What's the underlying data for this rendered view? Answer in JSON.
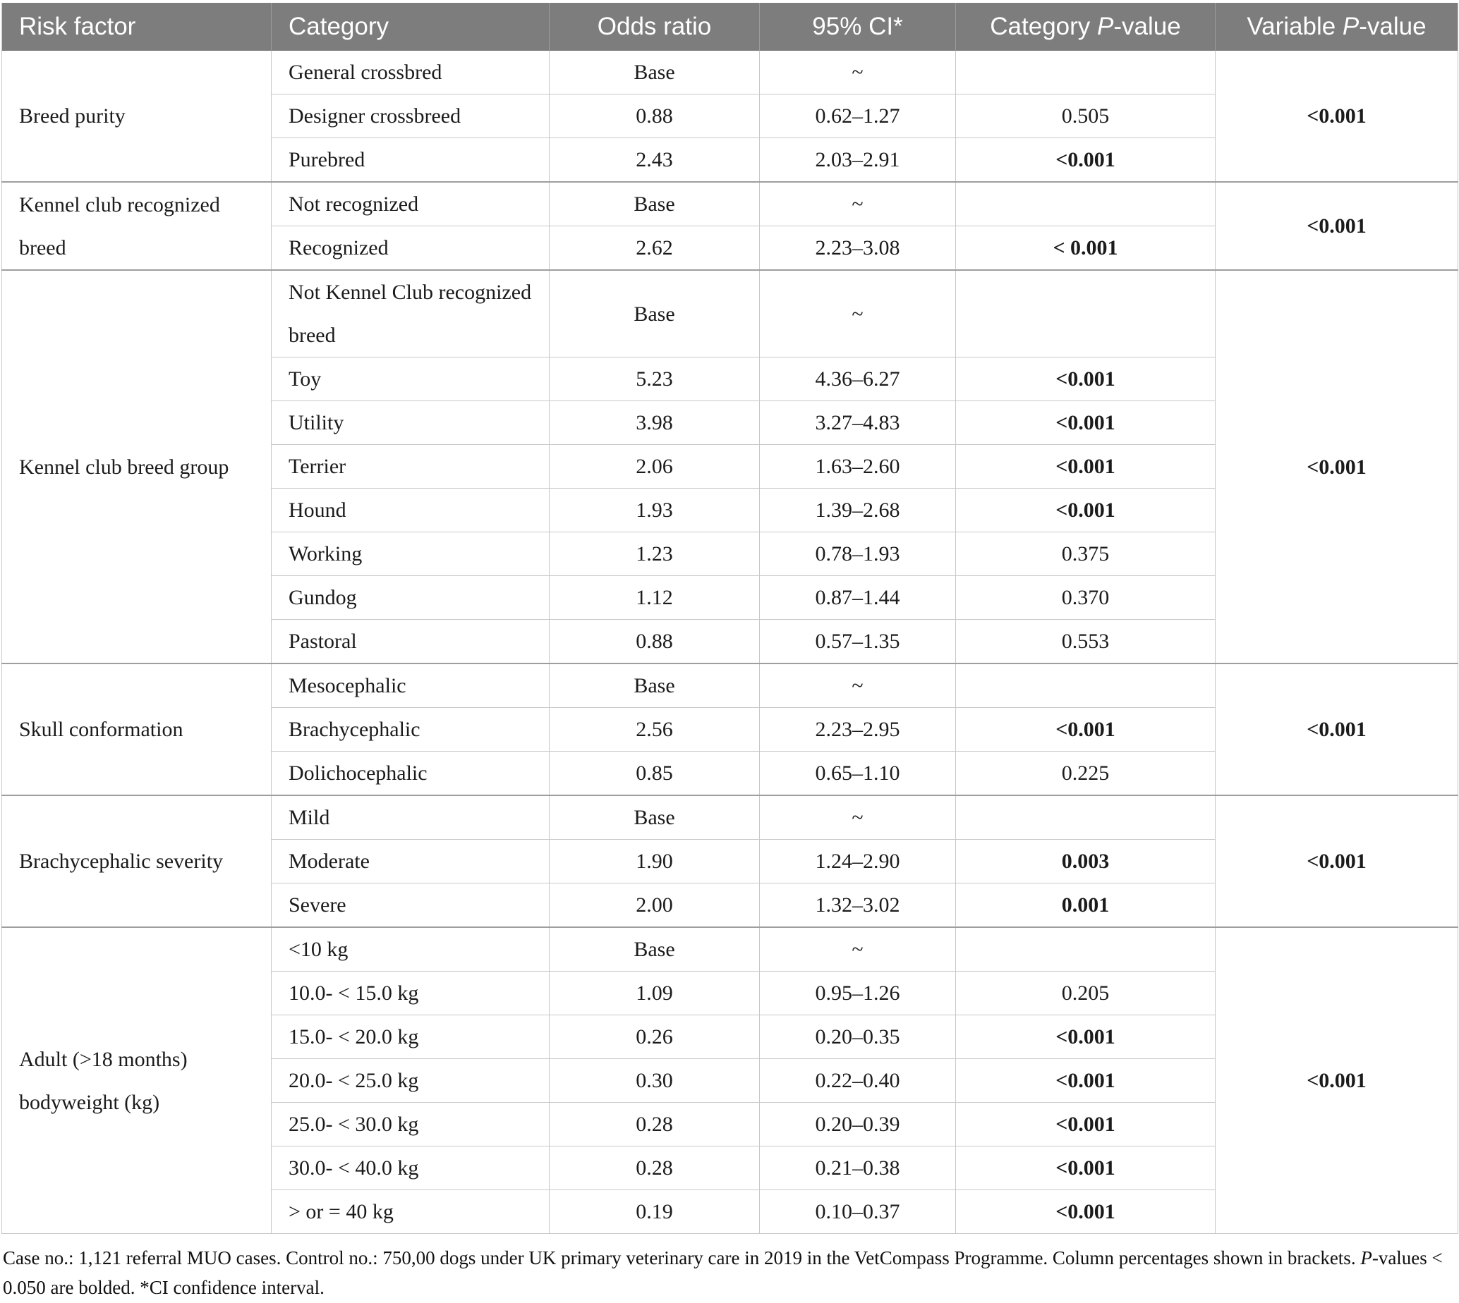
{
  "header": {
    "col_risk": "Risk factor",
    "col_category": "Category",
    "col_odds_ratio": "Odds ratio",
    "col_ci": "95% CI*",
    "col_catp_pre": "Category ",
    "col_catp_italic": "P",
    "col_catp_post": "-value",
    "col_varp_pre": "Variable ",
    "col_varp_italic": "P",
    "col_varp_post": "-value"
  },
  "sections": [
    {
      "risk_factor": "Breed purity",
      "variable_p": "<0.001",
      "variable_p_bold": true,
      "rows": [
        {
          "category": "General crossbred",
          "odds_ratio": "Base",
          "ci": "~",
          "p": "",
          "p_bold": false
        },
        {
          "category": "Designer crossbreed",
          "odds_ratio": "0.88",
          "ci": "0.62–1.27",
          "p": "0.505",
          "p_bold": false
        },
        {
          "category": "Purebred",
          "odds_ratio": "2.43",
          "ci": "2.03–2.91",
          "p": "<0.001",
          "p_bold": true
        }
      ]
    },
    {
      "risk_factor": "Kennel club recognized breed",
      "variable_p": "<0.001",
      "variable_p_bold": true,
      "rows": [
        {
          "category": "Not recognized",
          "odds_ratio": "Base",
          "ci": "~",
          "p": "",
          "p_bold": false
        },
        {
          "category": "Recognized",
          "odds_ratio": "2.62",
          "ci": "2.23–3.08",
          "p": "< 0.001",
          "p_bold": true
        }
      ]
    },
    {
      "risk_factor": "Kennel club breed group",
      "variable_p": "<0.001",
      "variable_p_bold": true,
      "rows": [
        {
          "category": "Not Kennel Club recognized breed",
          "odds_ratio": "Base",
          "ci": "~",
          "p": "",
          "p_bold": false
        },
        {
          "category": "Toy",
          "odds_ratio": "5.23",
          "ci": "4.36–6.27",
          "p": "<0.001",
          "p_bold": true
        },
        {
          "category": "Utility",
          "odds_ratio": "3.98",
          "ci": "3.27–4.83",
          "p": "<0.001",
          "p_bold": true
        },
        {
          "category": "Terrier",
          "odds_ratio": "2.06",
          "ci": "1.63–2.60",
          "p": "<0.001",
          "p_bold": true
        },
        {
          "category": "Hound",
          "odds_ratio": "1.93",
          "ci": "1.39–2.68",
          "p": "<0.001",
          "p_bold": true
        },
        {
          "category": "Working",
          "odds_ratio": "1.23",
          "ci": "0.78–1.93",
          "p": "0.375",
          "p_bold": false
        },
        {
          "category": "Gundog",
          "odds_ratio": "1.12",
          "ci": "0.87–1.44",
          "p": "0.370",
          "p_bold": false
        },
        {
          "category": "Pastoral",
          "odds_ratio": "0.88",
          "ci": "0.57–1.35",
          "p": "0.553",
          "p_bold": false
        }
      ]
    },
    {
      "risk_factor": "Skull conformation",
      "variable_p": "<0.001",
      "variable_p_bold": true,
      "rows": [
        {
          "category": "Mesocephalic",
          "odds_ratio": "Base",
          "ci": "~",
          "p": "",
          "p_bold": false
        },
        {
          "category": "Brachycephalic",
          "odds_ratio": "2.56",
          "ci": "2.23–2.95",
          "p": "<0.001",
          "p_bold": true
        },
        {
          "category": "Dolichocephalic",
          "odds_ratio": "0.85",
          "ci": "0.65–1.10",
          "p": "0.225",
          "p_bold": false
        }
      ]
    },
    {
      "risk_factor": "Brachycephalic severity",
      "variable_p": "<0.001",
      "variable_p_bold": true,
      "rows": [
        {
          "category": "Mild",
          "odds_ratio": "Base",
          "ci": "~",
          "p": "",
          "p_bold": false
        },
        {
          "category": "Moderate",
          "odds_ratio": "1.90",
          "ci": "1.24–2.90",
          "p": "0.003",
          "p_bold": true
        },
        {
          "category": "Severe",
          "odds_ratio": "2.00",
          "ci": "1.32–3.02",
          "p": "0.001",
          "p_bold": true
        }
      ]
    },
    {
      "risk_factor": "Adult (>18 months) bodyweight (kg)",
      "variable_p": "<0.001",
      "variable_p_bold": true,
      "rows": [
        {
          "category": "<10 kg",
          "odds_ratio": "Base",
          "ci": "~",
          "p": "",
          "p_bold": false
        },
        {
          "category": "10.0- < 15.0 kg",
          "odds_ratio": "1.09",
          "ci": "0.95–1.26",
          "p": "0.205",
          "p_bold": false
        },
        {
          "category": "15.0- < 20.0 kg",
          "odds_ratio": "0.26",
          "ci": "0.20–0.35",
          "p": "<0.001",
          "p_bold": true
        },
        {
          "category": "20.0- < 25.0 kg",
          "odds_ratio": "0.30",
          "ci": "0.22–0.40",
          "p": "<0.001",
          "p_bold": true
        },
        {
          "category": "25.0- < 30.0 kg",
          "odds_ratio": "0.28",
          "ci": "0.20–0.39",
          "p": "<0.001",
          "p_bold": true
        },
        {
          "category": "30.0- < 40.0 kg",
          "odds_ratio": "0.28",
          "ci": "0.21–0.38",
          "p": "<0.001",
          "p_bold": true
        },
        {
          "category": "> or = 40 kg",
          "odds_ratio": "0.19",
          "ci": "0.10–0.37",
          "p": "<0.001",
          "p_bold": true
        }
      ]
    }
  ],
  "footnote": {
    "part1": "Case no.: 1,121 referral MUO cases. Control no.: 750,00 dogs under UK primary veterinary care in 2019 in the VetCompass Programme. Column percentages shown in brackets. ",
    "italic_p": "P",
    "part2": "-values < 0.050 are bolded. *CI confidence interval."
  },
  "colors": {
    "header_bg": "#7d7d7d",
    "header_text": "#ffffff",
    "row_border": "#c8c8c8",
    "section_border": "#9e9e9e",
    "body_text": "#1b1b1b"
  }
}
